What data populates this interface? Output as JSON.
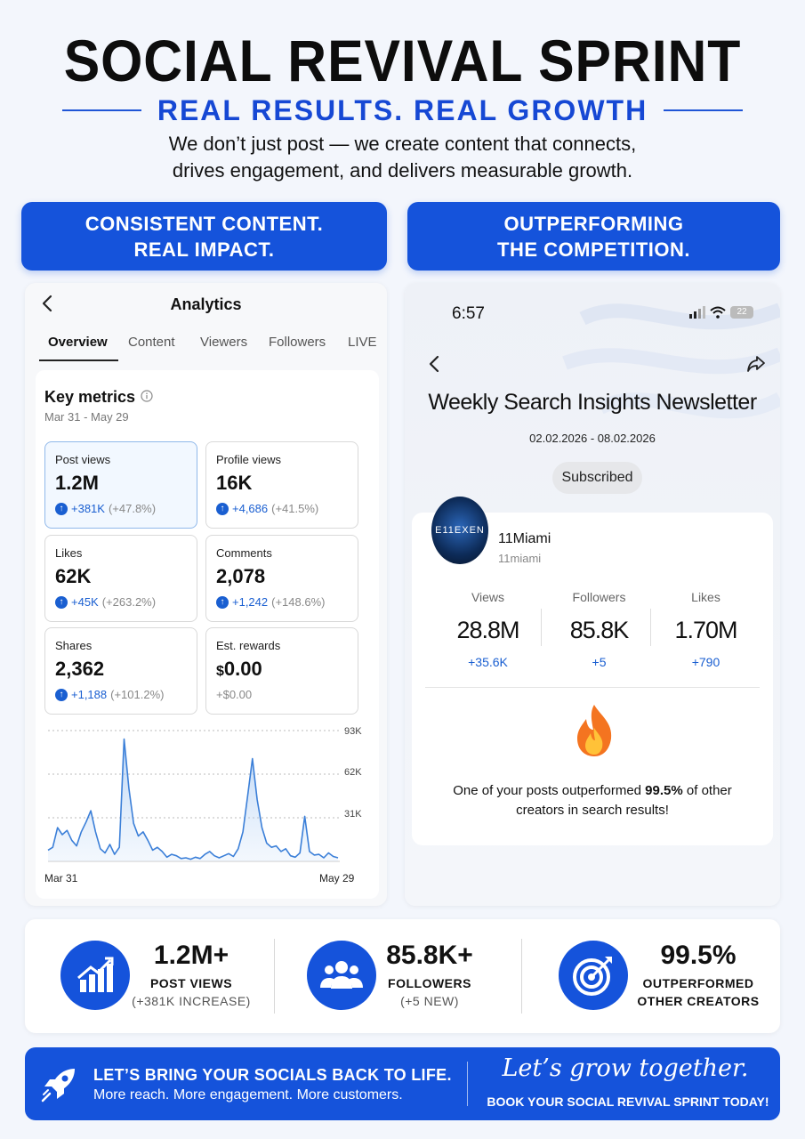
{
  "header": {
    "title": "SOCIAL REVIVAL SPRINT",
    "subtitle": "REAL RESULTS. REAL GROWTH",
    "tagline_line1": "We don’t just post — we create content that connects,",
    "tagline_line2": "drives engagement, and delivers measurable growth."
  },
  "banners": {
    "left_line1": "CONSISTENT CONTENT.",
    "left_line2": "REAL IMPACT.",
    "right_line1": "OUTPERFORMING",
    "right_line2": "THE COMPETITION."
  },
  "analytics": {
    "title": "Analytics",
    "tabs": [
      "Overview",
      "Content",
      "Viewers",
      "Followers",
      "LIVE"
    ],
    "key_metrics_label": "Key metrics",
    "date_range": "Mar 31 - May 29",
    "metrics": [
      {
        "label": "Post views",
        "value": "1.2M",
        "delta": "+381K",
        "pct": "(+47.8%)"
      },
      {
        "label": "Profile views",
        "value": "16K",
        "delta": "+4,686",
        "pct": "(+41.5%)"
      },
      {
        "label": "Likes",
        "value": "62K",
        "delta": "+45K",
        "pct": "(+263.2%)"
      },
      {
        "label": "Comments",
        "value": "2,078",
        "delta": "+1,242",
        "pct": "(+148.6%)"
      },
      {
        "label": "Shares",
        "value": "2,362",
        "delta": "+1,188",
        "pct": "(+101.2%)"
      },
      {
        "label": "Est. rewards",
        "value_prefix": "$",
        "value": "0.00",
        "delta": "+$0.00",
        "pct": ""
      }
    ],
    "chart_ticks": [
      "93K",
      "62K",
      "31K"
    ],
    "x_start": "Mar 31",
    "x_end": "May 29"
  },
  "chart_data": {
    "type": "area",
    "ylim": [
      0,
      93000
    ],
    "y_ticks": [
      "93K",
      "62K",
      "31K"
    ],
    "x_labels": [
      "Mar 31",
      "May 29"
    ],
    "values": [
      8000,
      10000,
      24000,
      19000,
      22000,
      15000,
      11000,
      21000,
      28000,
      36000,
      21000,
      9000,
      6000,
      12000,
      5000,
      10000,
      87000,
      52000,
      27000,
      18000,
      21000,
      15000,
      8000,
      10000,
      7000,
      3000,
      5000,
      4000,
      2000,
      2500,
      1500,
      3000,
      2000,
      5000,
      7000,
      4000,
      2500,
      4000,
      5500,
      3500,
      9000,
      21000,
      47000,
      73000,
      44000,
      24000,
      13000,
      10000,
      11000,
      7000,
      9000,
      4000,
      3000,
      6000,
      32000,
      7000,
      4500,
      5000,
      2500,
      6000,
      3500,
      2500
    ]
  },
  "insights": {
    "time": "6:57",
    "battery": "22",
    "title": "Weekly Search Insights Newsletter",
    "date_range": "02.02.2026 - 08.02.2026",
    "subscribed": "Subscribed",
    "avatar_text": "E11EXEN",
    "name": "11Miami",
    "handle": "11miami",
    "stats": [
      {
        "label": "Views",
        "value": "28.8M",
        "delta": "+35.6K"
      },
      {
        "label": "Followers",
        "value": "85.8K",
        "delta": "+5"
      },
      {
        "label": "Likes",
        "value": "1.70M",
        "delta": "+790"
      }
    ],
    "message_prefix": "One of your posts outperformed ",
    "message_bold": "99.5%",
    "message_suffix": " of other",
    "message_line2": "creators in search results!"
  },
  "summary": [
    {
      "value": "1.2M+",
      "label1": "POST VIEWS",
      "label2": "(+381K INCREASE)",
      "icon": "bar-chart-growth-icon"
    },
    {
      "value": "85.8K+",
      "label1": "FOLLOWERS",
      "label2": "(+5 NEW)",
      "icon": "users-group-icon"
    },
    {
      "value": "99.5%",
      "label1": "OUTPERFORMED",
      "label2": "OTHER CREATORS",
      "icon": "target-icon"
    }
  ],
  "footer": {
    "headline": "LET’S BRING YOUR SOCIALS BACK TO LIFE.",
    "sub": "More reach. More engagement. More customers.",
    "script": "Let’s grow together.",
    "cta": "BOOK YOUR SOCIAL REVIVAL SPRINT TODAY!"
  },
  "colors": {
    "brand_blue": "#1553db",
    "accent_blue": "#1a5fd1",
    "fire_orange": "#f7791f"
  }
}
